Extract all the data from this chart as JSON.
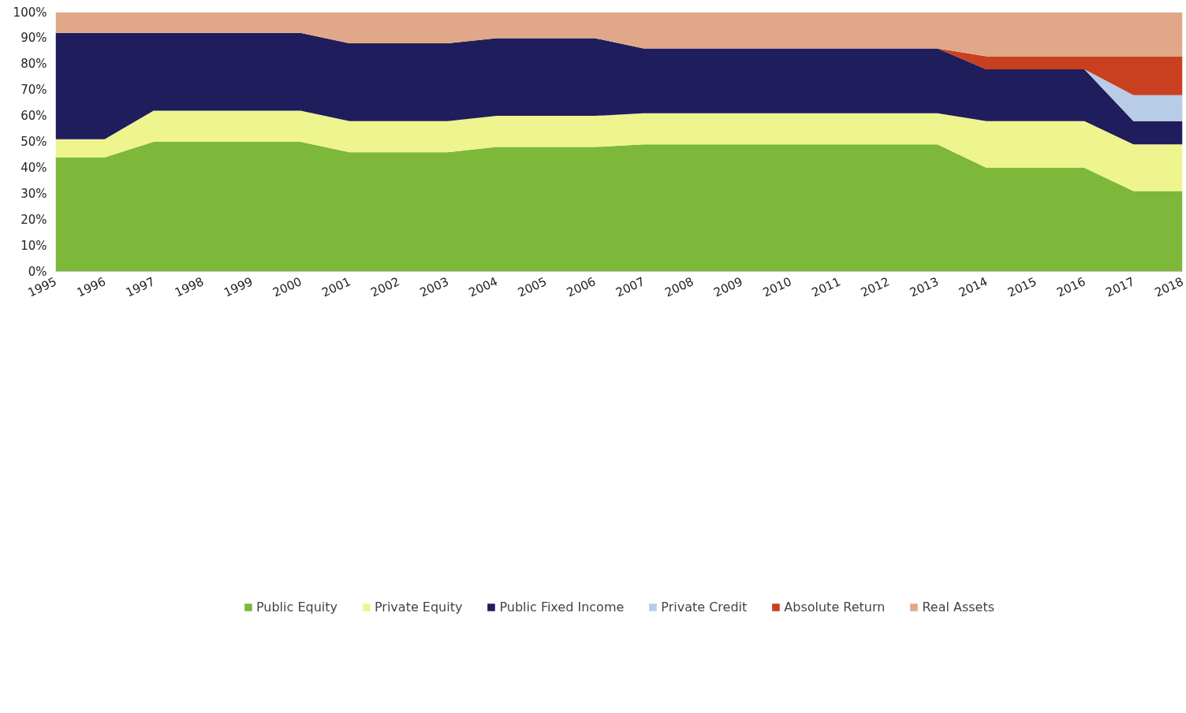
{
  "chart_data": {
    "type": "area",
    "stacked": true,
    "categories": [
      "1995",
      "1996",
      "1997",
      "1998",
      "1999",
      "2000",
      "2001",
      "2002",
      "2003",
      "2004",
      "2005",
      "2006",
      "2007",
      "2008",
      "2009",
      "2010",
      "2011",
      "2012",
      "2013",
      "2014",
      "2015",
      "2016",
      "2017",
      "2018"
    ],
    "series": [
      {
        "name": "Public Equity",
        "color": "#7db83a",
        "values": [
          44,
          44,
          50,
          50,
          50,
          50,
          46,
          46,
          46,
          48,
          48,
          48,
          49,
          49,
          49,
          49,
          49,
          49,
          49,
          40,
          40,
          40,
          31,
          31
        ]
      },
      {
        "name": "Private Equity",
        "color": "#eef58e",
        "values": [
          7,
          7,
          12,
          12,
          12,
          12,
          12,
          12,
          12,
          12,
          12,
          12,
          12,
          12,
          12,
          12,
          12,
          12,
          12,
          18,
          18,
          18,
          18,
          18
        ]
      },
      {
        "name": "Public Fixed Income",
        "color": "#1f1d5c",
        "values": [
          41,
          41,
          30,
          30,
          30,
          30,
          30,
          30,
          30,
          30,
          30,
          30,
          25,
          25,
          25,
          25,
          25,
          25,
          25,
          20,
          20,
          20,
          9,
          9
        ]
      },
      {
        "name": "Private Credit",
        "color": "#b8cce8",
        "values": [
          0,
          0,
          0,
          0,
          0,
          0,
          0,
          0,
          0,
          0,
          0,
          0,
          0,
          0,
          0,
          0,
          0,
          0,
          0,
          0,
          0,
          0,
          10,
          10
        ]
      },
      {
        "name": "Absolute Return",
        "color": "#c8401f",
        "values": [
          0,
          0,
          0,
          0,
          0,
          0,
          0,
          0,
          0,
          0,
          0,
          0,
          0,
          0,
          0,
          0,
          0,
          0,
          0,
          5,
          5,
          5,
          15,
          15
        ]
      },
      {
        "name": "Real Assets",
        "color": "#e0a888",
        "values": [
          8,
          8,
          8,
          8,
          8,
          8,
          12,
          12,
          12,
          10,
          10,
          10,
          14,
          14,
          14,
          14,
          14,
          14,
          14,
          17,
          17,
          17,
          17,
          17
        ]
      }
    ],
    "ylim": [
      0,
      100
    ],
    "yticks": [
      {
        "value": 0,
        "label": "0%"
      },
      {
        "value": 10,
        "label": "10%"
      },
      {
        "value": 20,
        "label": "20%"
      },
      {
        "value": 30,
        "label": "30%"
      },
      {
        "value": 40,
        "label": "40%"
      },
      {
        "value": 50,
        "label": "50%"
      },
      {
        "value": 60,
        "label": "60%"
      },
      {
        "value": 70,
        "label": "70%"
      },
      {
        "value": 80,
        "label": "80%"
      },
      {
        "value": 90,
        "label": "90%"
      },
      {
        "value": 100,
        "label": "100%"
      }
    ],
    "grid": false,
    "legend": "bottom"
  }
}
